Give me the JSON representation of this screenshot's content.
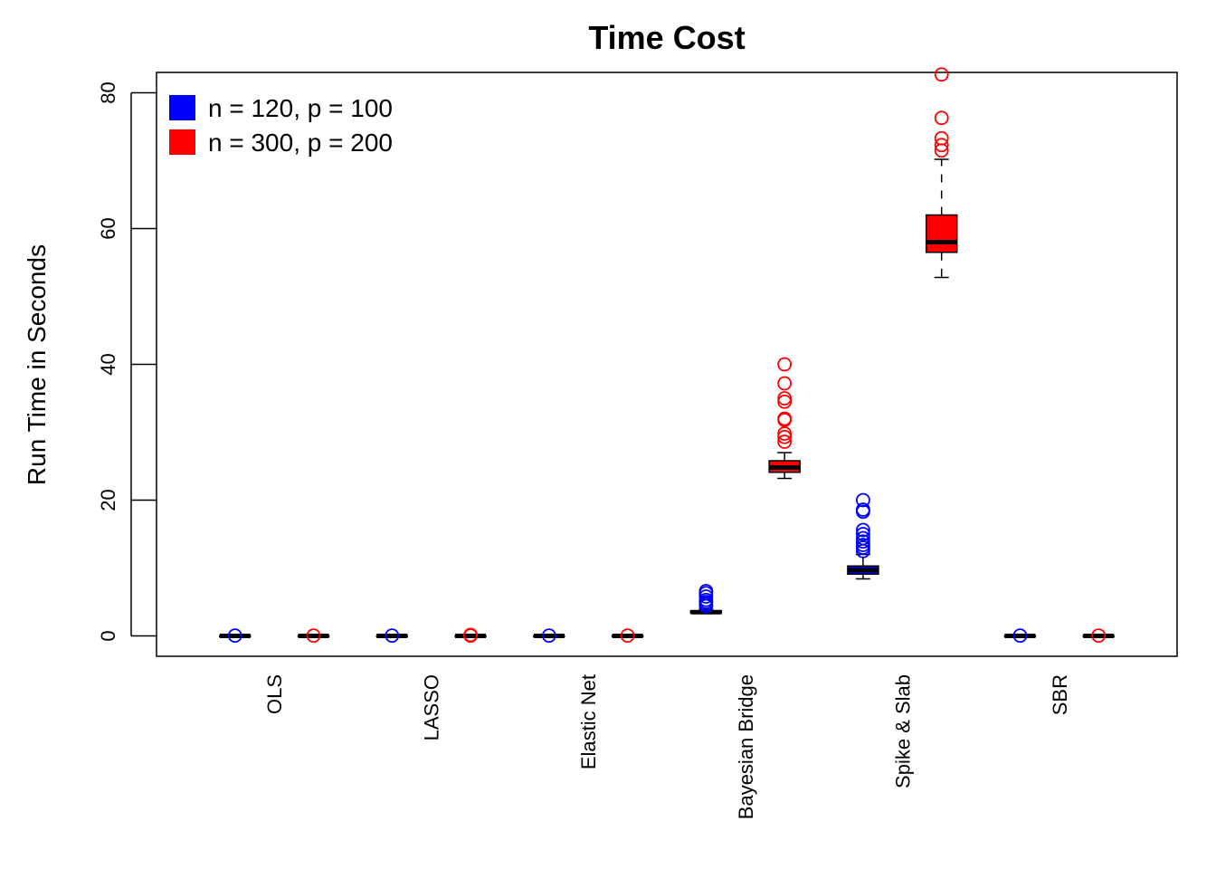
{
  "chart_data": {
    "type": "box",
    "title": "Time Cost",
    "xlabel": "",
    "ylabel": "Run Time in Seconds",
    "ylim": [
      -3,
      83
    ],
    "yticks": [
      0,
      20,
      40,
      60,
      80
    ],
    "categories": [
      "OLS",
      "LASSO",
      "Elastic Net",
      "Bayesian Bridge",
      "Spike & Slab",
      "SBR"
    ],
    "legend_position": "top-left",
    "series": [
      {
        "name": "n = 120, p = 100",
        "color": "#0000ff",
        "boxes": [
          {
            "min": 0,
            "q1": 0,
            "median": 0,
            "q3": 0,
            "max": 0,
            "outliers": [
              0.05
            ]
          },
          {
            "min": 0,
            "q1": 0,
            "median": 0,
            "q3": 0,
            "max": 0,
            "outliers": [
              0.05
            ]
          },
          {
            "min": 0,
            "q1": 0,
            "median": 0,
            "q3": 0,
            "max": 0,
            "outliers": [
              0.05
            ]
          },
          {
            "min": 3.3,
            "q1": 3.4,
            "median": 3.5,
            "q3": 3.7,
            "max": 3.9,
            "outliers": [
              4.4,
              4.7,
              5.0,
              5.3,
              5.8,
              6.3,
              6.6
            ]
          },
          {
            "min": 8.4,
            "q1": 9.1,
            "median": 9.7,
            "q3": 10.3,
            "max": 12.0,
            "outliers": [
              12.5,
              13.0,
              13.4,
              13.9,
              14.4,
              15.0,
              15.6,
              18.3,
              18.6,
              20.0
            ]
          },
          {
            "min": 0,
            "q1": 0,
            "median": 0,
            "q3": 0,
            "max": 0,
            "outliers": [
              0.05
            ]
          }
        ]
      },
      {
        "name": "n = 300, p = 200",
        "color": "#ff0000",
        "boxes": [
          {
            "min": 0,
            "q1": 0,
            "median": 0,
            "q3": 0,
            "max": 0,
            "outliers": [
              0.05
            ]
          },
          {
            "min": 0,
            "q1": 0,
            "median": 0,
            "q3": 0,
            "max": 0,
            "outliers": [
              0.05,
              0.15
            ]
          },
          {
            "min": 0,
            "q1": 0,
            "median": 0,
            "q3": 0,
            "max": 0,
            "outliers": [
              0.05
            ]
          },
          {
            "min": 23.2,
            "q1": 24.1,
            "median": 24.8,
            "q3": 25.8,
            "max": 27.0,
            "outliers": [
              28.6,
              29.3,
              29.8,
              31.8,
              32.0,
              34.5,
              35.0,
              37.2,
              40.0
            ]
          },
          {
            "min": 52.8,
            "q1": 56.5,
            "median": 58.0,
            "q3": 62.0,
            "max": 70.2,
            "outliers": [
              71.5,
              72.3,
              73.3,
              76.3,
              82.7
            ]
          },
          {
            "min": 0,
            "q1": 0,
            "median": 0,
            "q3": 0,
            "max": 0,
            "outliers": [
              0.05
            ]
          }
        ]
      }
    ]
  }
}
